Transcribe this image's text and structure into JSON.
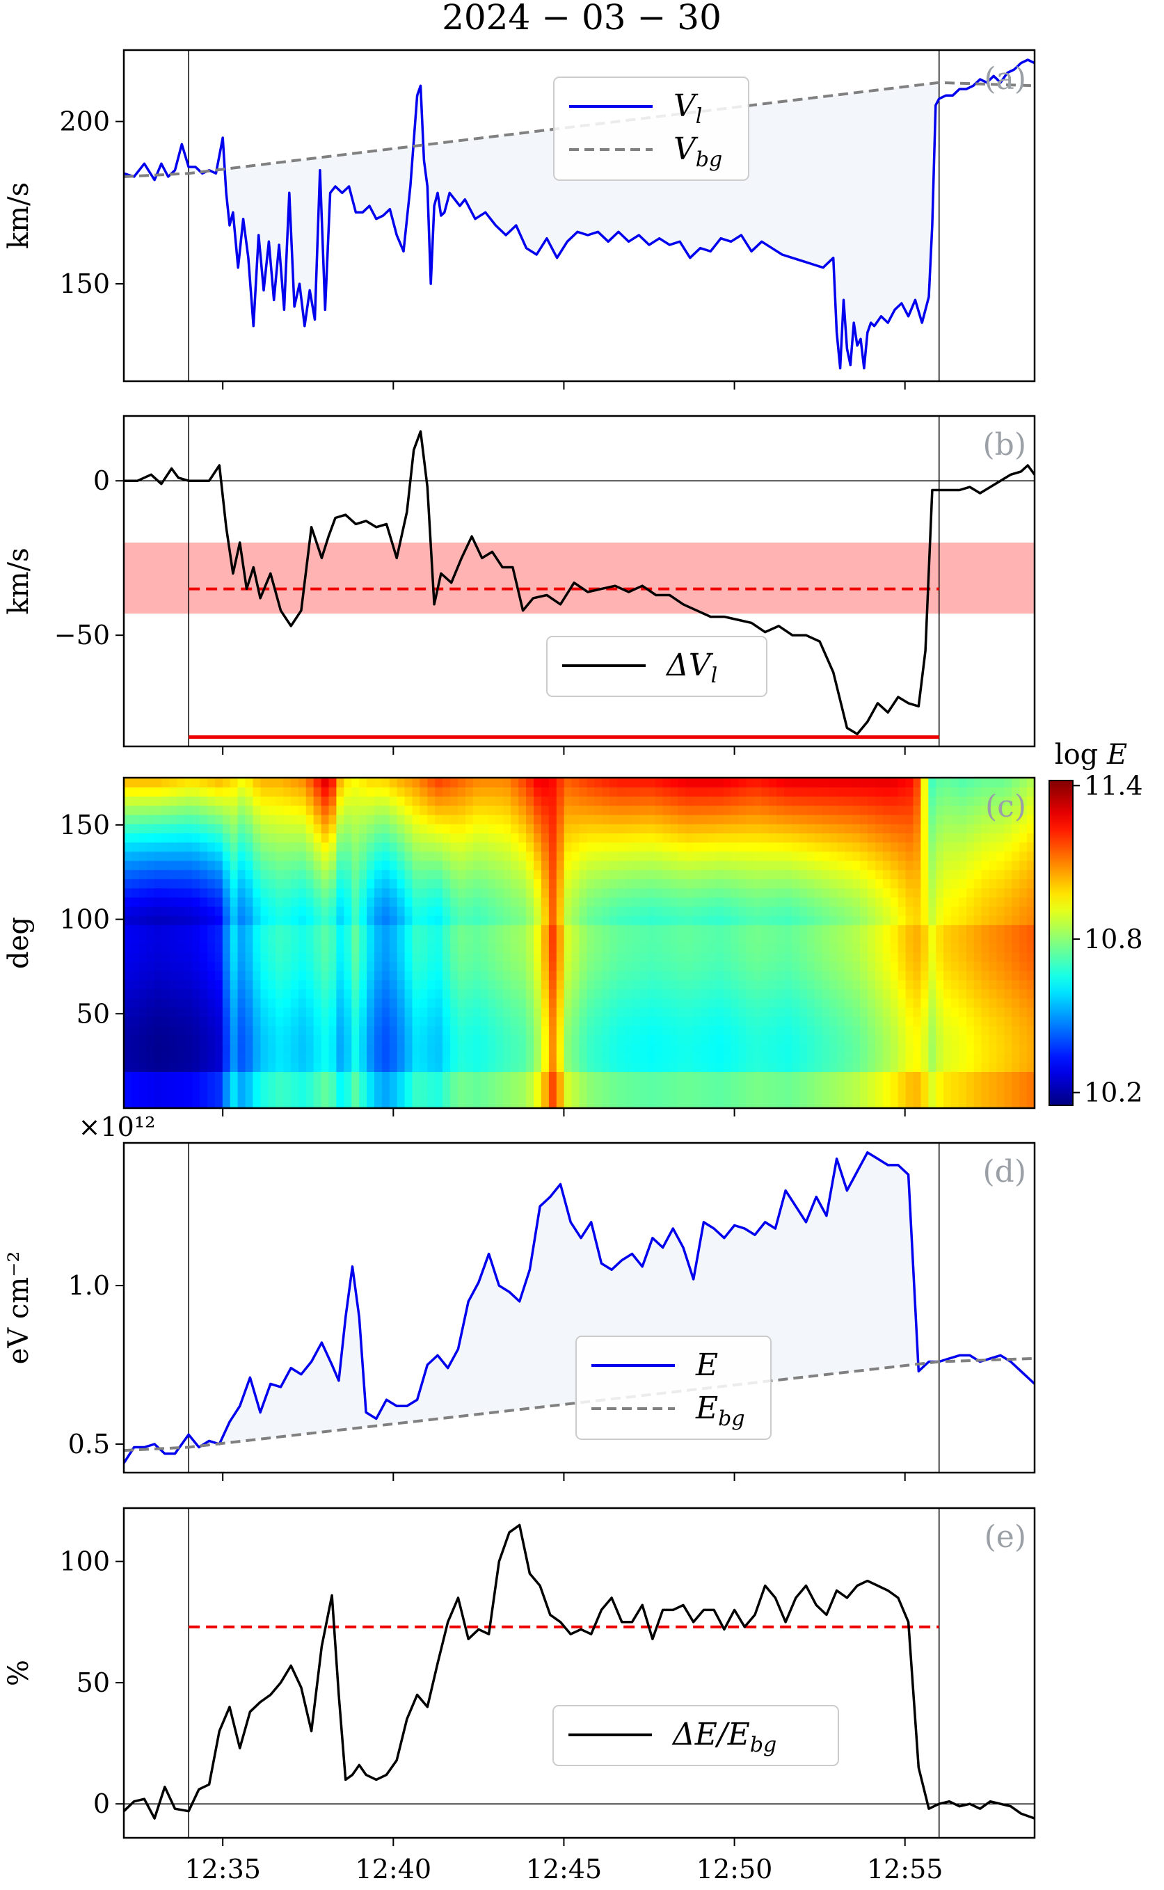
{
  "title": "2024 − 03 − 30",
  "x_axis": {
    "type": "time",
    "range_min": [
      0,
      26.7
    ],
    "ticks": [
      {
        "t": 2.9,
        "label": "12:35"
      },
      {
        "t": 7.9,
        "label": "12:40"
      },
      {
        "t": 12.9,
        "label": "12:45"
      },
      {
        "t": 17.9,
        "label": "12:50"
      },
      {
        "t": 22.9,
        "label": "12:55"
      }
    ],
    "event_start": 1.9,
    "event_end": 23.9
  },
  "colorbar": {
    "label": "log E",
    "ticks": [
      "11.4",
      "10.8",
      "10.2"
    ],
    "range": [
      10.15,
      11.42
    ]
  },
  "chart_data": [
    {
      "panel": "a",
      "tag": "(a)",
      "type": "line",
      "ylabel": "km/s",
      "ylim": [
        120,
        222
      ],
      "yticks": [
        {
          "v": 150,
          "label": "150"
        },
        {
          "v": 200,
          "label": "200"
        }
      ],
      "legend": [
        "V_l",
        "V_bg"
      ],
      "series": [
        {
          "name": "V_l",
          "color": "#0000ee",
          "x": [
            0,
            0.3,
            0.6,
            0.9,
            1.1,
            1.3,
            1.5,
            1.7,
            1.9,
            2.1,
            2.3,
            2.5,
            2.7,
            2.9,
            3.0,
            3.1,
            3.2,
            3.35,
            3.5,
            3.65,
            3.8,
            3.95,
            4.1,
            4.25,
            4.4,
            4.55,
            4.7,
            4.85,
            5.0,
            5.15,
            5.3,
            5.45,
            5.6,
            5.75,
            5.9,
            6.05,
            6.2,
            6.4,
            6.6,
            6.8,
            7.0,
            7.2,
            7.4,
            7.6,
            7.8,
            8.0,
            8.2,
            8.4,
            8.6,
            8.7,
            8.8,
            8.9,
            9.0,
            9.1,
            9.2,
            9.3,
            9.4,
            9.55,
            9.7,
            9.85,
            10.0,
            10.3,
            10.6,
            10.9,
            11.2,
            11.5,
            11.8,
            12.1,
            12.4,
            12.7,
            13.0,
            13.3,
            13.6,
            13.9,
            14.2,
            14.5,
            14.8,
            15.1,
            15.4,
            15.7,
            16.0,
            16.3,
            16.6,
            16.9,
            17.2,
            17.5,
            17.8,
            18.1,
            18.4,
            18.7,
            19.0,
            19.3,
            19.6,
            19.9,
            20.2,
            20.5,
            20.8,
            20.9,
            21.0,
            21.1,
            21.2,
            21.3,
            21.4,
            21.5,
            21.6,
            21.7,
            21.8,
            21.9,
            22.0,
            22.2,
            22.4,
            22.6,
            22.8,
            23.0,
            23.2,
            23.4,
            23.6,
            23.7,
            23.8,
            23.9,
            24.1,
            24.3,
            24.5,
            24.7,
            24.9,
            25.1,
            25.3,
            25.5,
            25.7,
            25.9,
            26.1,
            26.3,
            26.5,
            26.7
          ],
          "values": [
            184,
            183,
            187,
            182,
            187,
            183,
            185,
            193,
            186,
            186,
            184,
            185,
            184,
            195,
            178,
            168,
            172,
            155,
            170,
            158,
            137,
            165,
            148,
            163,
            145,
            162,
            142,
            178,
            143,
            150,
            137,
            148,
            139,
            185,
            142,
            178,
            180,
            178,
            180,
            172,
            172,
            174,
            170,
            171,
            173,
            165,
            160,
            180,
            208,
            211,
            188,
            180,
            150,
            174,
            178,
            171,
            172,
            178,
            176,
            174,
            176,
            170,
            172,
            168,
            165,
            168,
            161,
            159,
            164,
            158,
            163,
            166,
            165,
            166,
            163,
            166,
            163,
            165,
            162,
            164,
            162,
            163,
            158,
            161,
            160,
            164,
            163,
            165,
            160,
            163,
            161,
            159,
            158,
            157,
            156,
            155,
            158,
            135,
            124,
            145,
            130,
            125,
            138,
            131,
            133,
            124,
            135,
            138,
            137,
            140,
            138,
            142,
            144,
            140,
            145,
            138,
            146,
            168,
            205,
            207,
            208,
            208,
            210,
            210,
            211,
            213,
            212,
            214,
            212,
            215,
            216,
            218,
            219,
            218
          ]
        },
        {
          "name": "V_bg",
          "color": "#808080",
          "dashed": true,
          "x": [
            0,
            1.9,
            23.9,
            26.7
          ],
          "values": [
            183,
            184,
            212,
            211
          ]
        }
      ]
    },
    {
      "panel": "b",
      "tag": "(b)",
      "type": "line",
      "ylabel": "km/s",
      "ylim": [
        -86,
        21
      ],
      "yticks": [
        {
          "v": -50,
          "label": "−50"
        },
        {
          "v": 0,
          "label": "0"
        }
      ],
      "legend": [
        "ΔV_l"
      ],
      "band": [
        -43,
        -20
      ],
      "mean_line": -35,
      "bottom_line": -83,
      "series": [
        {
          "name": "ΔV_l",
          "color": "#000000",
          "x": [
            0,
            0.4,
            0.8,
            1.1,
            1.4,
            1.6,
            1.9,
            2.2,
            2.5,
            2.8,
            3.0,
            3.2,
            3.4,
            3.6,
            3.8,
            4.0,
            4.3,
            4.6,
            4.9,
            5.2,
            5.5,
            5.8,
            6.0,
            6.2,
            6.5,
            6.8,
            7.1,
            7.4,
            7.7,
            8.0,
            8.3,
            8.5,
            8.7,
            8.9,
            9.1,
            9.3,
            9.6,
            9.9,
            10.2,
            10.5,
            10.8,
            11.1,
            11.4,
            11.7,
            12.0,
            12.4,
            12.8,
            13.2,
            13.6,
            14.0,
            14.4,
            14.8,
            15.2,
            15.6,
            16.0,
            16.4,
            16.8,
            17.2,
            17.6,
            18.0,
            18.4,
            18.8,
            19.2,
            19.6,
            20.0,
            20.4,
            20.8,
            21.2,
            21.5,
            21.8,
            22.1,
            22.4,
            22.7,
            23.0,
            23.3,
            23.5,
            23.7,
            23.9,
            24.2,
            24.5,
            24.8,
            25.1,
            25.4,
            25.7,
            26.0,
            26.3,
            26.5,
            26.7
          ],
          "values": [
            0,
            0,
            2,
            -1,
            4,
            1,
            0,
            0,
            0,
            5,
            -15,
            -30,
            -20,
            -35,
            -28,
            -38,
            -30,
            -42,
            -47,
            -42,
            -15,
            -25,
            -18,
            -12,
            -11,
            -14,
            -13,
            -15,
            -14,
            -25,
            -10,
            10,
            16,
            -2,
            -40,
            -30,
            -33,
            -25,
            -18,
            -25,
            -23,
            -28,
            -28,
            -42,
            -38,
            -37,
            -40,
            -33,
            -36,
            -35,
            -34,
            -36,
            -34,
            -37,
            -37,
            -40,
            -42,
            -44,
            -44,
            -45,
            -46,
            -49,
            -47,
            -50,
            -50,
            -52,
            -62,
            -80,
            -82,
            -78,
            -72,
            -75,
            -70,
            -72,
            -73,
            -55,
            -3,
            -3,
            -3,
            -3,
            -2,
            -4,
            -2,
            0,
            2,
            3,
            5,
            2
          ]
        }
      ]
    },
    {
      "panel": "c",
      "tag": "(c)",
      "type": "heatmap",
      "ylabel": "deg",
      "ylim": [
        0,
        175
      ],
      "yticks": [
        {
          "v": 50,
          "label": "50"
        },
        {
          "v": 100,
          "label": "100"
        },
        {
          "v": 150,
          "label": "150"
        }
      ],
      "colorscale": "jet",
      "time_profile_x": [
        0,
        1,
        2,
        2.8,
        3.2,
        3.5,
        4,
        4.6,
        5.3,
        6.0,
        6.4,
        6.8,
        7.2,
        7.6,
        8.0,
        8.6,
        9.2,
        9.8,
        10.4,
        11.2,
        11.8,
        12.2,
        12.6,
        13.0,
        13.6,
        14.5,
        15.5,
        16.5,
        17.5,
        18.5,
        19.5,
        20.5,
        21.5,
        22.5,
        23.2,
        23.5,
        23.7,
        24.0,
        24.6,
        25.2,
        25.8,
        26.3,
        26.7
      ],
      "low_angle": [
        10.25,
        10.22,
        10.24,
        10.3,
        10.55,
        10.45,
        10.6,
        10.65,
        10.6,
        10.7,
        10.55,
        10.7,
        10.55,
        10.45,
        10.5,
        10.65,
        10.6,
        10.72,
        10.7,
        10.75,
        10.78,
        10.9,
        11.15,
        10.85,
        10.75,
        10.7,
        10.68,
        10.7,
        10.68,
        10.72,
        10.7,
        10.75,
        10.8,
        10.9,
        11.0,
        10.95,
        10.88,
        10.95,
        10.98,
        11.02,
        11.05,
        11.08,
        11.1
      ],
      "high_angle": [
        11.05,
        11.05,
        11.0,
        11.05,
        11.0,
        10.95,
        11.05,
        11.05,
        11.1,
        11.35,
        11.0,
        10.95,
        11.0,
        11.0,
        11.05,
        11.1,
        11.2,
        11.15,
        11.1,
        11.1,
        11.2,
        11.3,
        11.25,
        11.15,
        11.2,
        11.25,
        11.25,
        11.3,
        11.3,
        11.25,
        11.3,
        11.3,
        11.3,
        11.3,
        11.25,
        10.9,
        10.7,
        10.75,
        10.72,
        10.75,
        10.75,
        10.8,
        10.85
      ]
    },
    {
      "panel": "d",
      "tag": "(d)",
      "type": "line",
      "ylabel": "eV cm⁻²",
      "multiplier": "×10¹²",
      "ylim": [
        0.41,
        1.45
      ],
      "yticks": [
        {
          "v": 0.5,
          "label": "0.5"
        },
        {
          "v": 1.0,
          "label": "1.0"
        }
      ],
      "legend": [
        "E",
        "E_bg"
      ],
      "series": [
        {
          "name": "E",
          "color": "#0000ee",
          "x": [
            0,
            0.3,
            0.6,
            0.9,
            1.2,
            1.5,
            1.9,
            2.2,
            2.5,
            2.8,
            3.1,
            3.4,
            3.7,
            4.0,
            4.3,
            4.6,
            4.9,
            5.2,
            5.5,
            5.8,
            6.1,
            6.3,
            6.5,
            6.7,
            6.9,
            7.1,
            7.4,
            7.7,
            8.0,
            8.3,
            8.6,
            8.9,
            9.2,
            9.5,
            9.8,
            10.1,
            10.4,
            10.7,
            11.0,
            11.3,
            11.6,
            11.9,
            12.2,
            12.5,
            12.8,
            13.1,
            13.4,
            13.7,
            14.0,
            14.3,
            14.6,
            14.9,
            15.2,
            15.5,
            15.8,
            16.1,
            16.4,
            16.7,
            17.0,
            17.3,
            17.6,
            17.9,
            18.2,
            18.5,
            18.8,
            19.1,
            19.4,
            19.7,
            20.0,
            20.3,
            20.6,
            20.9,
            21.2,
            21.5,
            21.8,
            22.1,
            22.4,
            22.7,
            23.0,
            23.3,
            23.6,
            23.9,
            24.2,
            24.5,
            24.8,
            25.1,
            25.4,
            25.7,
            26.0,
            26.3,
            26.7
          ],
          "values": [
            0.44,
            0.49,
            0.49,
            0.5,
            0.47,
            0.47,
            0.53,
            0.49,
            0.51,
            0.5,
            0.57,
            0.62,
            0.71,
            0.6,
            0.69,
            0.68,
            0.74,
            0.72,
            0.76,
            0.82,
            0.75,
            0.7,
            0.9,
            1.06,
            0.9,
            0.6,
            0.58,
            0.64,
            0.62,
            0.62,
            0.64,
            0.75,
            0.78,
            0.74,
            0.8,
            0.95,
            1.01,
            1.1,
            1.0,
            0.98,
            0.95,
            1.05,
            1.25,
            1.28,
            1.32,
            1.2,
            1.15,
            1.2,
            1.07,
            1.05,
            1.08,
            1.1,
            1.06,
            1.15,
            1.12,
            1.18,
            1.12,
            1.02,
            1.2,
            1.18,
            1.15,
            1.19,
            1.18,
            1.16,
            1.2,
            1.18,
            1.3,
            1.25,
            1.2,
            1.28,
            1.22,
            1.4,
            1.3,
            1.36,
            1.42,
            1.4,
            1.38,
            1.38,
            1.35,
            0.73,
            0.76,
            0.76,
            0.77,
            0.78,
            0.78,
            0.76,
            0.77,
            0.78,
            0.76,
            0.73,
            0.69
          ],
          "xOverride": true
        },
        {
          "name": "E_bg",
          "color": "#808080",
          "dashed": true,
          "x": [
            0,
            1.9,
            23.9,
            26.7
          ],
          "values": [
            0.48,
            0.49,
            0.76,
            0.77
          ]
        }
      ]
    },
    {
      "panel": "e",
      "tag": "(e)",
      "type": "line",
      "ylabel": "%",
      "ylim": [
        -14,
        122
      ],
      "yticks": [
        {
          "v": 0,
          "label": "0"
        },
        {
          "v": 50,
          "label": "50"
        },
        {
          "v": 100,
          "label": "100"
        }
      ],
      "legend": [
        "ΔE/E_bg"
      ],
      "mean_line": 73,
      "series": [
        {
          "name": "ΔE/E_bg",
          "color": "#000000",
          "x": [
            0,
            0.3,
            0.6,
            0.9,
            1.2,
            1.5,
            1.9,
            2.2,
            2.5,
            2.8,
            3.1,
            3.4,
            3.7,
            4.0,
            4.3,
            4.6,
            4.9,
            5.2,
            5.5,
            5.8,
            6.1,
            6.3,
            6.5,
            6.7,
            6.9,
            7.1,
            7.4,
            7.7,
            8.0,
            8.3,
            8.6,
            8.9,
            9.2,
            9.5,
            9.8,
            10.1,
            10.4,
            10.7,
            11.0,
            11.3,
            11.6,
            11.9,
            12.2,
            12.5,
            12.8,
            13.1,
            13.4,
            13.7,
            14.0,
            14.3,
            14.6,
            14.9,
            15.2,
            15.5,
            15.8,
            16.1,
            16.4,
            16.7,
            17.0,
            17.3,
            17.6,
            17.9,
            18.2,
            18.5,
            18.8,
            19.1,
            19.4,
            19.7,
            20.0,
            20.3,
            20.6,
            20.9,
            21.2,
            21.5,
            21.8,
            22.1,
            22.4,
            22.7,
            23.0,
            23.3,
            23.6,
            23.9,
            24.2,
            24.5,
            24.8,
            25.1,
            25.4,
            25.7,
            26.0,
            26.3,
            26.7
          ],
          "values": [
            -3,
            1,
            2,
            -6,
            7,
            -2,
            -3,
            6,
            8,
            30,
            40,
            23,
            38,
            42,
            45,
            50,
            57,
            48,
            30,
            65,
            86,
            45,
            10,
            12,
            16,
            12,
            10,
            12,
            18,
            35,
            45,
            40,
            58,
            75,
            85,
            68,
            72,
            70,
            100,
            112,
            115,
            95,
            90,
            78,
            75,
            70,
            72,
            70,
            80,
            85,
            75,
            75,
            82,
            68,
            80,
            80,
            82,
            75,
            80,
            80,
            72,
            80,
            73,
            78,
            90,
            85,
            75,
            85,
            90,
            82,
            78,
            88,
            85,
            90,
            92,
            90,
            88,
            85,
            75,
            15,
            -2,
            0,
            1,
            -1,
            0,
            -2,
            1,
            0,
            -1,
            -4,
            -6
          ],
          "xOverride": true
        }
      ]
    }
  ]
}
